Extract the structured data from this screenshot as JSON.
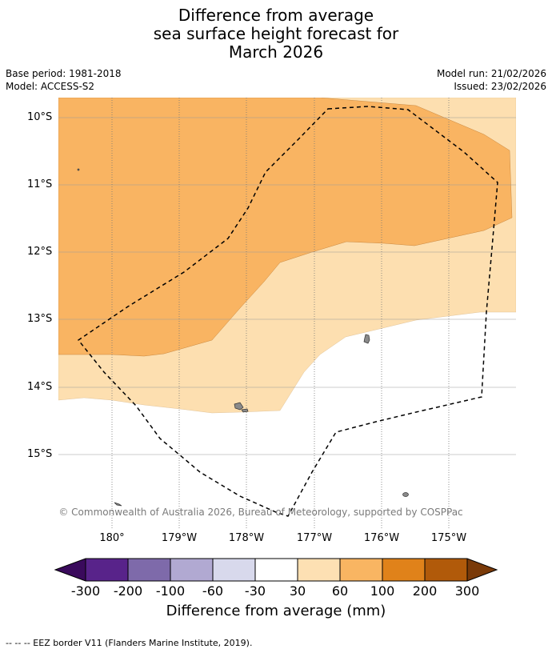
{
  "title": {
    "line1": "Difference from average",
    "line2": "sea surface height forecast for",
    "line3": "March 2026"
  },
  "meta": {
    "base_period": "Base period: 1981-2018",
    "model": "Model: ACCESS-S2",
    "model_run": "Model run: 21/02/2026",
    "issued": "Issued: 23/02/2026"
  },
  "map": {
    "lat_labels": [
      "10°S",
      "11°S",
      "12°S",
      "13°S",
      "14°S",
      "15°S"
    ],
    "lon_labels": [
      "180°",
      "179°W",
      "178°W",
      "177°W",
      "176°W",
      "175°W"
    ],
    "copyright": "© Commonwealth of Australia 2026, Bureau of Meteorology, supported by COSPPac",
    "colors": {
      "band_100_200": "#f9b462",
      "band_60_100": "#fddfb0",
      "band_30_60": "#ffffff",
      "land": "#8a8a8a",
      "eez": "#000000"
    }
  },
  "colorbar": {
    "ticks": [
      "-300",
      "-200",
      "-100",
      "-60",
      "-30",
      "30",
      "60",
      "100",
      "200",
      "300"
    ],
    "colors": [
      "#3a0a5c",
      "#58238a",
      "#7e6aaa",
      "#b1a9d2",
      "#d8d9ec",
      "#ffffff",
      "#fde0b3",
      "#f9b562",
      "#e0821a",
      "#b15a0a",
      "#7a3a09"
    ],
    "title": "Difference from average (mm)"
  },
  "footnote": "--  --  -- EEZ border V11 (Flanders Marine Institute, 2019)."
}
